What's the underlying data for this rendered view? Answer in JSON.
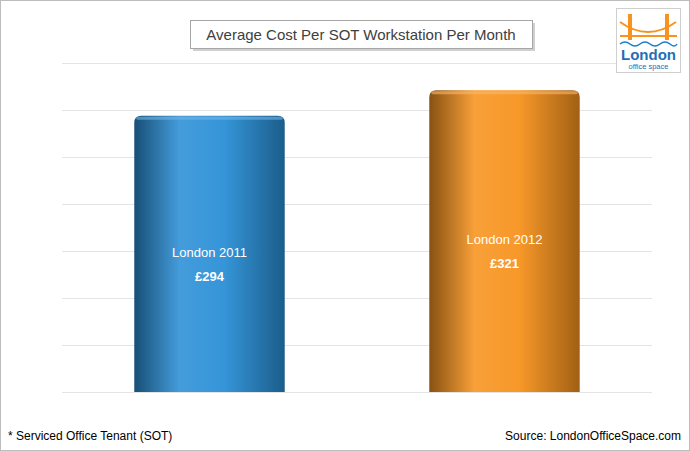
{
  "chart_data": {
    "type": "bar",
    "title": "Average Cost Per SOT Workstation Per Month",
    "categories": [
      "London 2011",
      "London 2012"
    ],
    "values": [
      294,
      321
    ],
    "value_labels": [
      "£294",
      "£321"
    ],
    "colors": [
      "#2a8fd6",
      "#f7931e"
    ],
    "ylim": [
      0,
      350
    ],
    "yticks": [
      0,
      50,
      100,
      150,
      200,
      250,
      300,
      350
    ],
    "grid": true,
    "tick_labels": false,
    "data_labels": true,
    "annotations": [
      "* Serviced Office Tenant (SOT)",
      "Source: LondonOfficeSpace.com",
      "London",
      "office space"
    ]
  }
}
